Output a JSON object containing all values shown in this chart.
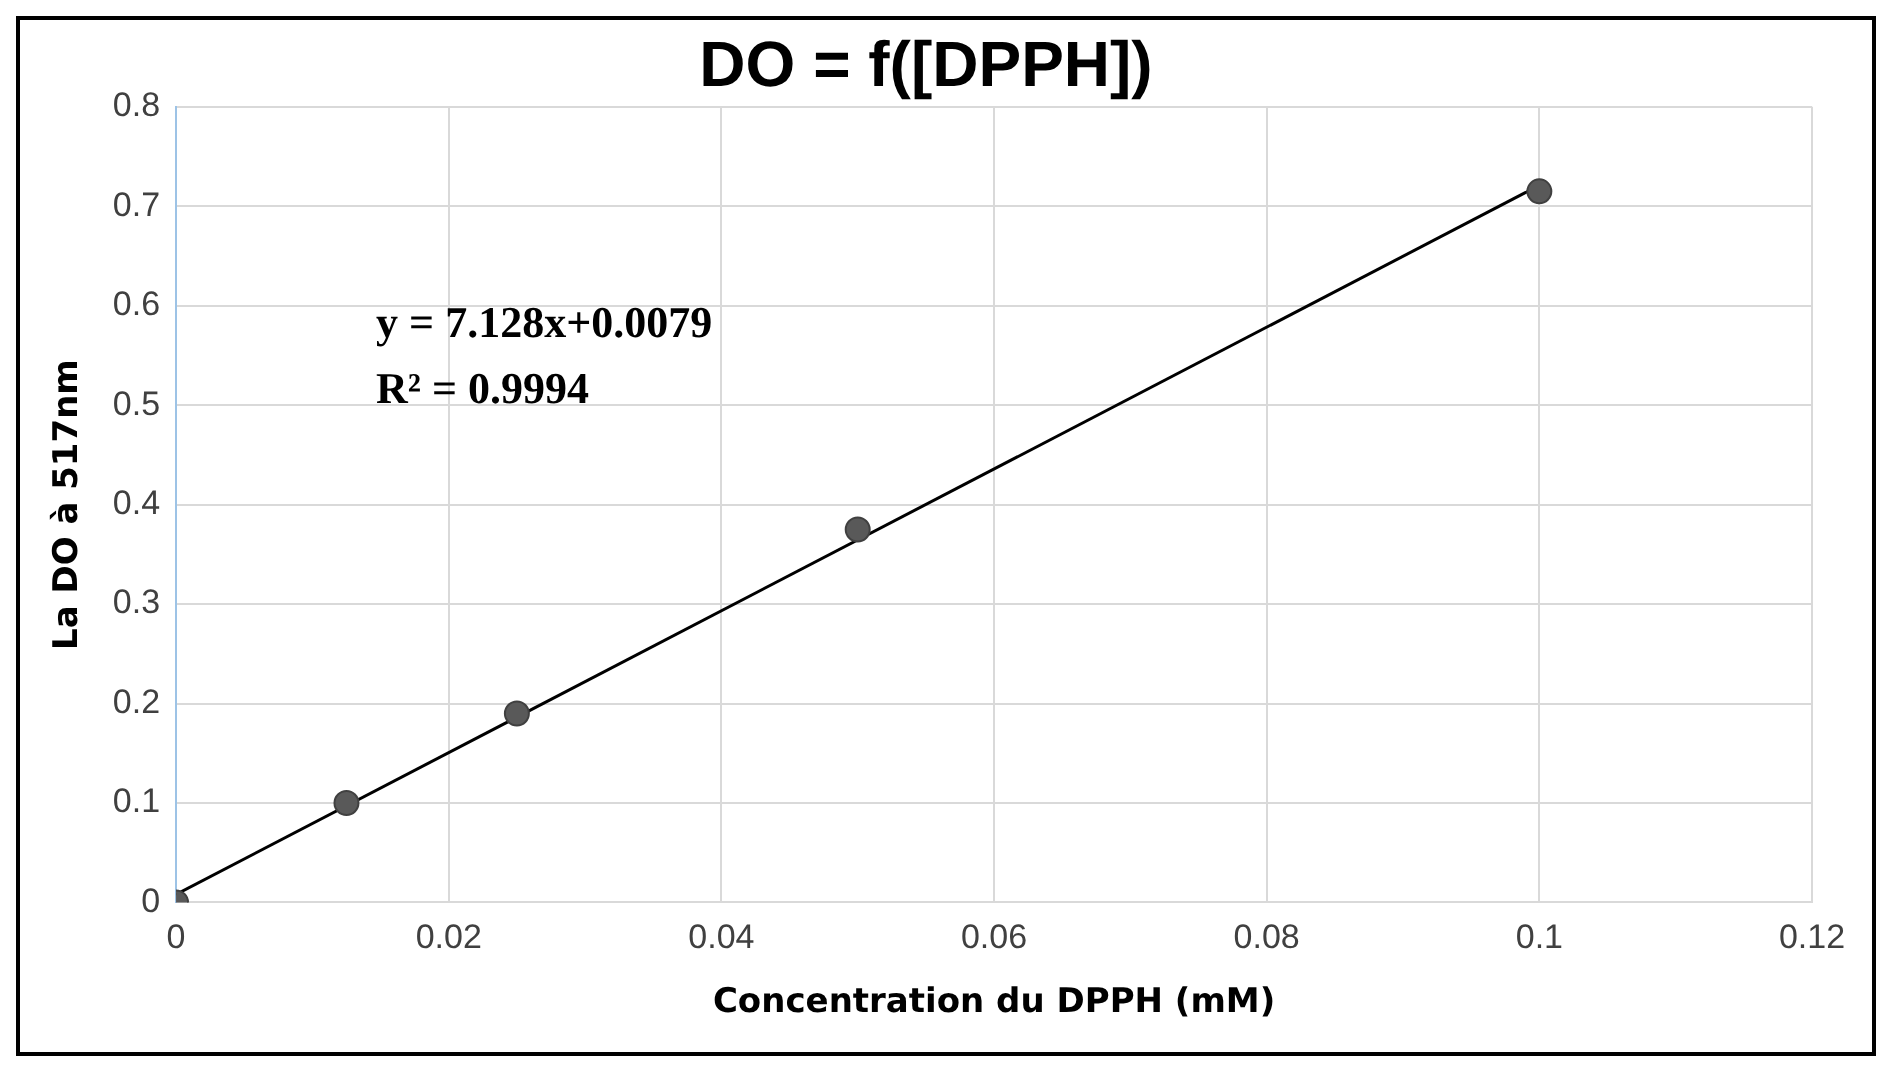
{
  "chart_data": {
    "type": "scatter",
    "title": "DO = f([DPPH])",
    "xlabel": "Concentration du DPPH (mM)",
    "ylabel": "La DO à 517nm",
    "series": [
      {
        "color": "#595959",
        "x": [
          0,
          0.0125,
          0.025,
          0.05,
          0.1
        ],
        "values": [
          0,
          0.1,
          0.19,
          0.375,
          0.715
        ]
      },
      {
        "type": "line",
        "color": "#000000",
        "x": [
          0,
          0.1
        ],
        "values": [
          0.008,
          0.721
        ],
        "marker": "none"
      }
    ],
    "xlim": [
      0,
      0.12
    ],
    "xticks": [
      0,
      0.02,
      0.04,
      0.06,
      0.08,
      0.1,
      0.12
    ],
    "ylim": [
      0,
      0.8
    ],
    "yticks": [
      0,
      0.1,
      0.2,
      0.3,
      0.4,
      0.5,
      0.6,
      0.7,
      0.8
    ],
    "grid": true,
    "marker": "circle",
    "annotations": [
      "y = 7.128x+0.0079",
      "R² = 0.9994"
    ]
  }
}
